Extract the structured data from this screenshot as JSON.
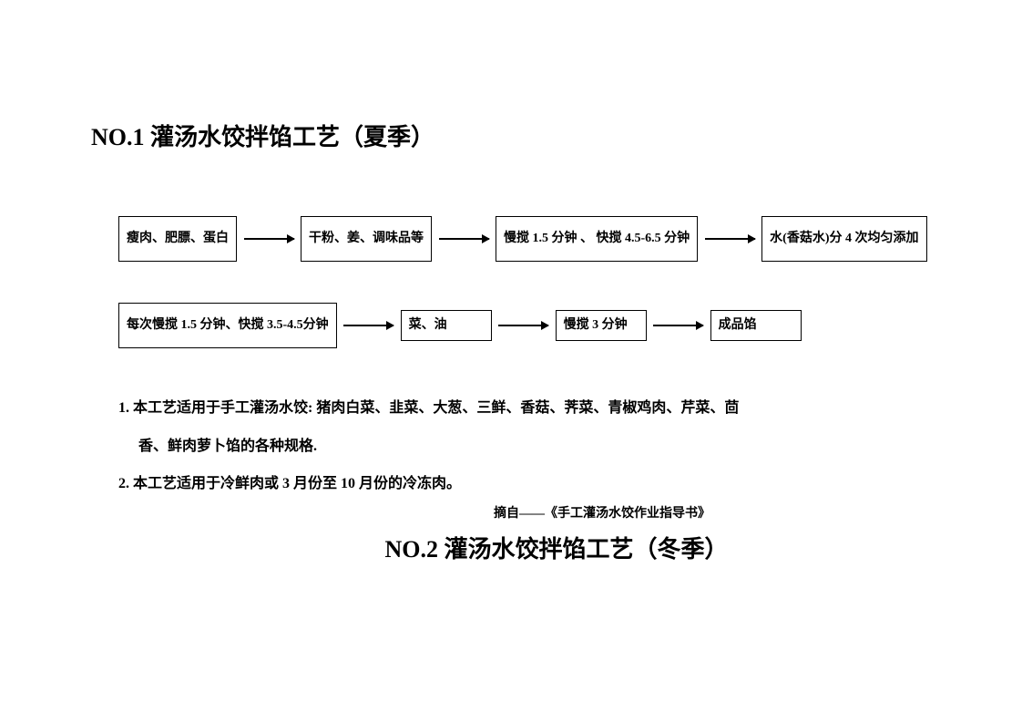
{
  "title1": "NO.1 灌汤水饺拌馅工艺（夏季）",
  "title2": "NO.2 灌汤水饺拌馅工艺（冬季）",
  "row1": {
    "box1": "瘦肉、肥膘、蛋白",
    "box2": "干粉、姜、调味品等",
    "box3": "慢搅 1.5 分钟 、 快搅 4.5-6.5 分钟",
    "box4": "水(香菇水)分 4 次均匀添加"
  },
  "row2": {
    "box1": "每次慢搅 1.5 分钟、快搅 3.5-4.5分钟",
    "box2": "菜、油",
    "box3": "慢搅 3 分钟",
    "box4": "成品馅"
  },
  "notes": {
    "n1a": "1. 本工艺适用于手工灌汤水饺: 猪肉白菜、韭菜、大葱、三鲜、香菇、荠菜、青椒鸡肉、芹菜、茴",
    "n1b": "香、鲜肉萝卜馅的各种规格.",
    "n2": "2. 本工艺适用于冷鲜肉或 3 月份至 10 月份的冷冻肉。"
  },
  "citation": "摘自——《手工灌汤水饺作业指导书》",
  "styling": {
    "border_color": "#000000",
    "border_width": 1.5,
    "text_color": "#000000",
    "background_color": "#ffffff",
    "title_fontsize": 26,
    "box_fontsize": 14,
    "notes_fontsize": 16,
    "citation_fontsize": 14,
    "box_min_width": 110,
    "box_min_height": 50,
    "arrow_length": 55,
    "arrow_head_size": 9,
    "font_family": "SimSun"
  }
}
